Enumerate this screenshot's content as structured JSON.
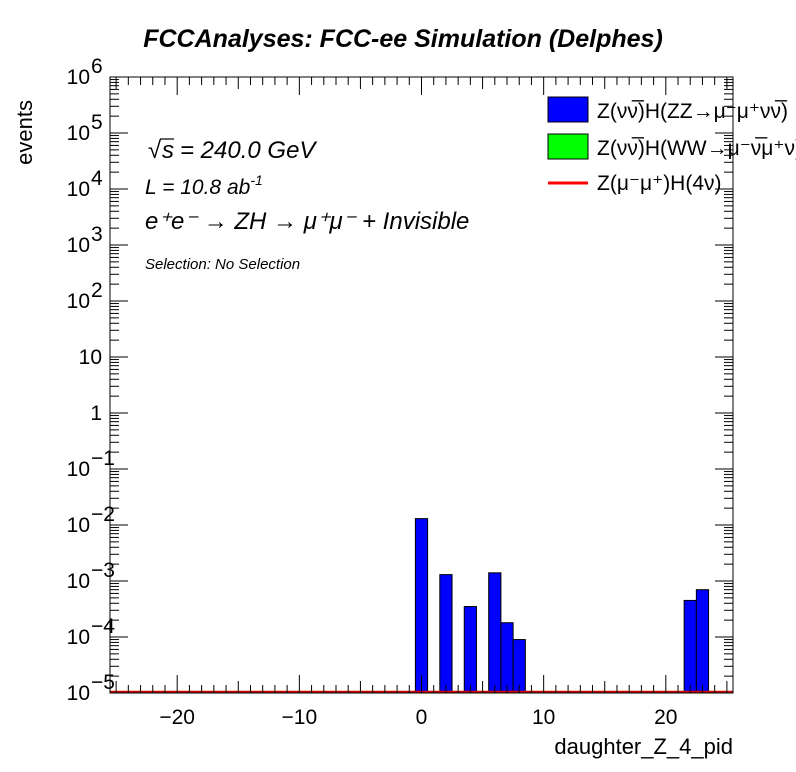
{
  "chart_data": {
    "type": "bar",
    "title": "FCCAnalyses: FCC-ee Simulation (Delphes)",
    "xlabel": "daughter_Z_4_pid",
    "ylabel": "events",
    "xlim": [
      -25.5,
      25.5
    ],
    "ylim": [
      1e-05,
      1000000
    ],
    "yscale": "log",
    "x_ticks": [
      -20,
      -10,
      0,
      10,
      20
    ],
    "x_tick_labels": [
      "−20",
      "−10",
      "0",
      "10",
      "20"
    ],
    "y_tick_labels": [
      {
        "value": 1e-05,
        "base": "10",
        "exp": "−5"
      },
      {
        "value": 0.0001,
        "base": "10",
        "exp": "−4"
      },
      {
        "value": 0.001,
        "base": "10",
        "exp": "−3"
      },
      {
        "value": 0.01,
        "base": "10",
        "exp": "−2"
      },
      {
        "value": 0.1,
        "base": "10",
        "exp": "−1"
      },
      {
        "value": 1,
        "base": "1",
        "exp": ""
      },
      {
        "value": 10,
        "base": "10",
        "exp": ""
      },
      {
        "value": 100,
        "base": "10",
        "exp": "2"
      },
      {
        "value": 1000,
        "base": "10",
        "exp": "3"
      },
      {
        "value": 10000,
        "base": "10",
        "exp": "4"
      },
      {
        "value": 100000,
        "base": "10",
        "exp": "5"
      },
      {
        "value": 1000000,
        "base": "10",
        "exp": "6"
      }
    ],
    "bin_width": 1,
    "series": [
      {
        "name": "Z(νν̅)H(ZZ→μ⁻μ⁺νν̅)",
        "style": "filled",
        "color": "#0000ff",
        "bins": [
          {
            "x": 0,
            "value": 0.013
          },
          {
            "x": 2,
            "value": 0.0013
          },
          {
            "x": 4,
            "value": 0.00035
          },
          {
            "x": 6,
            "value": 0.0014
          },
          {
            "x": 7,
            "value": 0.00018
          },
          {
            "x": 8,
            "value": 9e-05
          },
          {
            "x": 22,
            "value": 0.00045
          },
          {
            "x": 23,
            "value": 0.0007
          }
        ]
      },
      {
        "name": "Z(νν̅)H(WW→μ⁻ν̅μ⁺ν)",
        "style": "filled",
        "color": "#00ff00",
        "bins": []
      },
      {
        "name": "Z(μ⁻μ⁺)H(4ν)",
        "style": "line",
        "color": "#ff0000",
        "bins": []
      }
    ],
    "legend_position": "top-right",
    "annotations": {
      "sqrt_s": "= 240.0 GeV",
      "lumi_label": "L = 10.8 ab",
      "lumi_exp": "-1",
      "process": "e⁺e⁻ → ZH → μ⁺μ⁻ + Invisible",
      "selection": "Selection: No Selection"
    }
  }
}
